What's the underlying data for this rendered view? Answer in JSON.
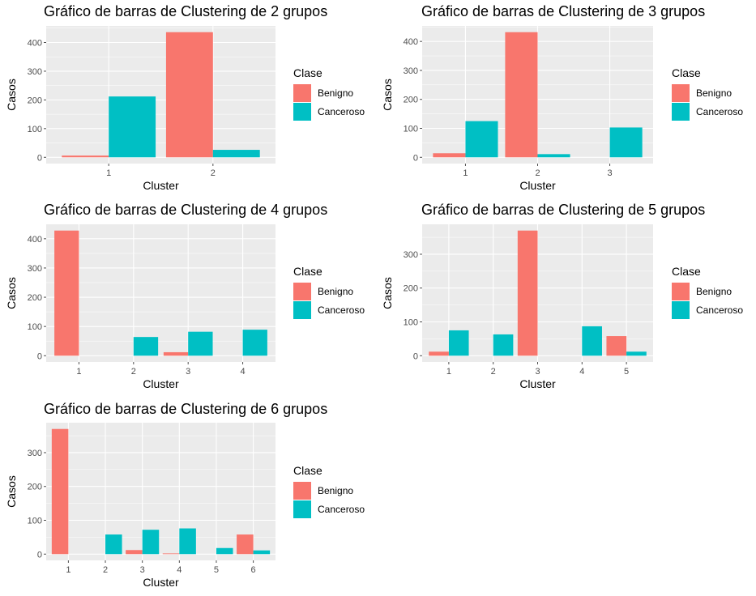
{
  "colors": {
    "benigno": "#F8766D",
    "canceroso": "#00BFC4",
    "panel": "#EBEBEB",
    "grid": "#FFFFFF",
    "tick": "#4D4D4D"
  },
  "legend": {
    "title": "Clase",
    "items": [
      "Benigno",
      "Canceroso"
    ]
  },
  "chart_data": [
    {
      "type": "bar",
      "title": "Gráfico de barras de Clustering de 2 grupos",
      "xlabel": "Cluster",
      "ylabel": "Casos",
      "categories": [
        "1",
        "2"
      ],
      "series": [
        {
          "name": "Benigno",
          "values": [
            6,
            436
          ]
        },
        {
          "name": "Canceroso",
          "values": [
            212,
            26
          ]
        }
      ],
      "yticks": [
        0,
        100,
        200,
        300,
        400
      ],
      "ylim": [
        -21.8,
        457.8
      ]
    },
    {
      "type": "bar",
      "title": "Gráfico de barras de Clustering de 3 grupos",
      "xlabel": "Cluster",
      "ylabel": "Casos",
      "categories": [
        "1",
        "2",
        "3"
      ],
      "series": [
        {
          "name": "Benigno",
          "values": [
            14,
            432,
            0
          ]
        },
        {
          "name": "Canceroso",
          "values": [
            125,
            11,
            103
          ]
        }
      ],
      "yticks": [
        0,
        100,
        200,
        300,
        400
      ],
      "ylim": [
        -21.6,
        453.6
      ]
    },
    {
      "type": "bar",
      "title": "Gráfico de barras de Clustering de 4 grupos",
      "xlabel": "Cluster",
      "ylabel": "Casos",
      "categories": [
        "1",
        "2",
        "3",
        "4"
      ],
      "series": [
        {
          "name": "Benigno",
          "values": [
            428,
            0,
            12,
            0
          ]
        },
        {
          "name": "Canceroso",
          "values": [
            0,
            64,
            82,
            89
          ]
        }
      ],
      "yticks": [
        0,
        100,
        200,
        300,
        400
      ],
      "ylim": [
        -21.4,
        449.4
      ]
    },
    {
      "type": "bar",
      "title": "Gráfico de barras de Clustering de 5 grupos",
      "xlabel": "Cluster",
      "ylabel": "Casos",
      "categories": [
        "1",
        "2",
        "3",
        "4",
        "5"
      ],
      "series": [
        {
          "name": "Benigno",
          "values": [
            12,
            0,
            370,
            0,
            58
          ]
        },
        {
          "name": "Canceroso",
          "values": [
            75,
            63,
            0,
            87,
            12
          ]
        }
      ],
      "yticks": [
        0,
        100,
        200,
        300
      ],
      "ylim": [
        -18.5,
        388.5
      ]
    },
    {
      "type": "bar",
      "title": "Gráfico de barras de Clustering de 6 grupos",
      "xlabel": "Cluster",
      "ylabel": "Casos",
      "categories": [
        "1",
        "2",
        "3",
        "4",
        "5",
        "6"
      ],
      "series": [
        {
          "name": "Benigno",
          "values": [
            370,
            0,
            12,
            2,
            0,
            58
          ]
        },
        {
          "name": "Canceroso",
          "values": [
            0,
            58,
            72,
            76,
            18,
            11
          ]
        }
      ],
      "yticks": [
        0,
        100,
        200,
        300
      ],
      "ylim": [
        -18.5,
        388.5
      ]
    }
  ]
}
